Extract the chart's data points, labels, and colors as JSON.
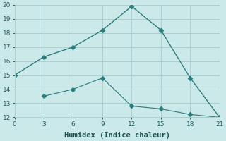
{
  "xlabel": "Humidex (Indice chaleur)",
  "line1_x": [
    0,
    3,
    6,
    9,
    12,
    15,
    18,
    21
  ],
  "line1_y": [
    15,
    16.3,
    17.0,
    18.2,
    19.9,
    18.2,
    14.8,
    12.0
  ],
  "line2_x": [
    3,
    6,
    9,
    12,
    15,
    18,
    21
  ],
  "line2_y": [
    13.5,
    14.0,
    14.8,
    12.8,
    12.6,
    12.2,
    12.0
  ],
  "line_color": "#2a7d7d",
  "bg_color": "#cce9e9",
  "grid_color": "#aacfcf",
  "xlim": [
    0,
    21
  ],
  "ylim": [
    12,
    20
  ],
  "xticks": [
    0,
    3,
    6,
    9,
    12,
    15,
    18,
    21
  ],
  "yticks": [
    12,
    13,
    14,
    15,
    16,
    17,
    18,
    19,
    20
  ],
  "tick_fontsize": 6.5,
  "xlabel_fontsize": 7.5,
  "markersize": 3.5,
  "linewidth1": 1.0,
  "linewidth2": 0.8
}
